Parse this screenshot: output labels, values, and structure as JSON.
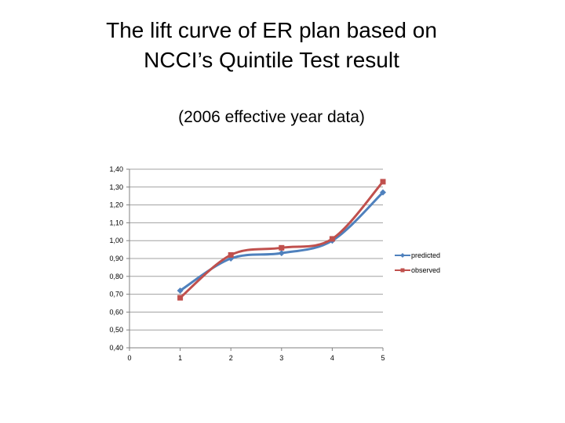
{
  "slide": {
    "title_line1": "The lift curve of ER plan based on",
    "title_line2": "NCCI’s Quintile Test result",
    "subtitle": "(2006 effective year data)"
  },
  "colors": {
    "predicted": "#4F81BD",
    "observed": "#C0504D",
    "grid": "#A0A0A0",
    "axis": "#808080"
  },
  "chart_data": {
    "type": "line",
    "title": "",
    "xlabel": "",
    "ylabel": "",
    "x_ticks": [
      "0",
      "1",
      "2",
      "3",
      "4",
      "5"
    ],
    "y_ticks": [
      "1,40",
      "1,30",
      "1,20",
      "1,10",
      "1,00",
      "0,90",
      "0,80",
      "0,70",
      "0,60",
      "0,50",
      "0,40"
    ],
    "xlim": [
      0,
      5
    ],
    "ylim": [
      0.4,
      1.4
    ],
    "grid": true,
    "legend_position": "right",
    "x": [
      1,
      2,
      3,
      4,
      5
    ],
    "series": [
      {
        "name": "predicted",
        "marker": "diamond",
        "values": [
          0.72,
          0.9,
          0.93,
          1.0,
          1.27
        ]
      },
      {
        "name": "observed",
        "marker": "square",
        "values": [
          0.68,
          0.92,
          0.96,
          1.01,
          1.33
        ]
      }
    ]
  }
}
